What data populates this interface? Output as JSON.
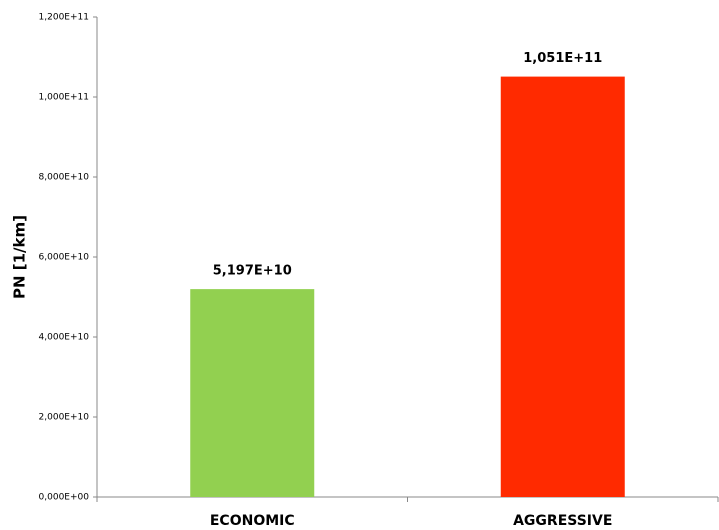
{
  "chart_data": {
    "type": "bar",
    "y_label": "PN [1/km]",
    "categories": [
      "ECONOMIC",
      "AGGRESSIVE"
    ],
    "values": [
      51970000000,
      105100000000
    ],
    "value_labels": [
      "5,197E+10",
      "1,051E+11"
    ],
    "colors": [
      "#92d050",
      "#ff2a00"
    ],
    "ylim": [
      0,
      120000000000
    ],
    "yticks": [
      {
        "value": 0,
        "label": "0,000E+00"
      },
      {
        "value": 20000000000,
        "label": "2,000E+10"
      },
      {
        "value": 40000000000,
        "label": "4,000E+10"
      },
      {
        "value": 60000000000,
        "label": "6,000E+10"
      },
      {
        "value": 80000000000,
        "label": "8,000E+10"
      },
      {
        "value": 100000000000,
        "label": "1,000E+11"
      },
      {
        "value": 120000000000,
        "label": "1,200E+11"
      }
    ],
    "grid": false
  }
}
